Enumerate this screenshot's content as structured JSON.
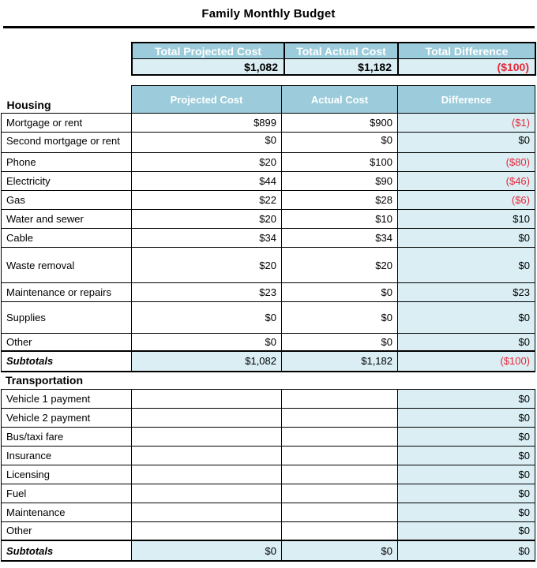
{
  "title": "Family Monthly Budget",
  "colors": {
    "header_blue": "#9cccdb",
    "light_blue": "#daeef3",
    "negative_red": "#e5293a"
  },
  "summary": {
    "columns": [
      "Total Projected Cost",
      "Total Actual Cost",
      "Total Difference"
    ],
    "values": [
      "$1,082",
      "$1,182",
      "($100)"
    ]
  },
  "housing": {
    "section_label": "Housing",
    "columns": [
      "Projected Cost",
      "Actual Cost",
      "Difference"
    ],
    "rows": [
      {
        "label": "Mortgage or rent",
        "projected": "$899",
        "actual": "$900",
        "difference": "($1)"
      },
      {
        "label": "Second mortgage or rent",
        "projected": "$0",
        "actual": "$0",
        "difference": "$0"
      },
      {
        "label": "Phone",
        "projected": "$20",
        "actual": "$100",
        "difference": "($80)"
      },
      {
        "label": "Electricity",
        "projected": "$44",
        "actual": "$90",
        "difference": "($46)"
      },
      {
        "label": "Gas",
        "projected": "$22",
        "actual": "$28",
        "difference": "($6)"
      },
      {
        "label": "Water and sewer",
        "projected": "$20",
        "actual": "$10",
        "difference": "$10"
      },
      {
        "label": "Cable",
        "projected": "$34",
        "actual": "$34",
        "difference": "$0"
      },
      {
        "label": "Waste removal",
        "projected": "$20",
        "actual": "$20",
        "difference": "$0"
      },
      {
        "label": "Maintenance or repairs",
        "projected": "$23",
        "actual": "$0",
        "difference": "$23"
      },
      {
        "label": "Supplies",
        "projected": "$0",
        "actual": "$0",
        "difference": "$0"
      },
      {
        "label": "Other",
        "projected": "$0",
        "actual": "$0",
        "difference": "$0"
      }
    ],
    "subtotals": {
      "label": "Subtotals",
      "projected": "$1,082",
      "actual": "$1,182",
      "difference": "($100)"
    }
  },
  "transportation": {
    "section_label": "Transportation",
    "rows": [
      {
        "label": "Vehicle 1 payment",
        "projected": "",
        "actual": "",
        "difference": "$0"
      },
      {
        "label": "Vehicle 2 payment",
        "projected": "",
        "actual": "",
        "difference": "$0"
      },
      {
        "label": "Bus/taxi fare",
        "projected": "",
        "actual": "",
        "difference": "$0"
      },
      {
        "label": "Insurance",
        "projected": "",
        "actual": "",
        "difference": "$0"
      },
      {
        "label": "Licensing",
        "projected": "",
        "actual": "",
        "difference": "$0"
      },
      {
        "label": "Fuel",
        "projected": "",
        "actual": "",
        "difference": "$0"
      },
      {
        "label": "Maintenance",
        "projected": "",
        "actual": "",
        "difference": "$0"
      },
      {
        "label": "Other",
        "projected": "",
        "actual": "",
        "difference": "$0"
      }
    ],
    "subtotals": {
      "label": "Subtotals",
      "projected": "$0",
      "actual": "$0",
      "difference": "$0"
    }
  }
}
